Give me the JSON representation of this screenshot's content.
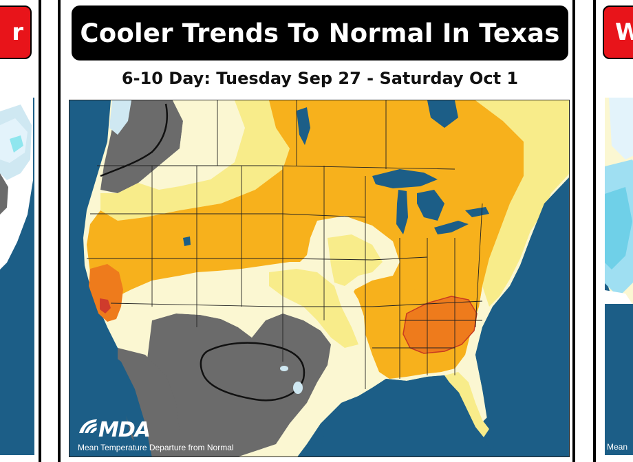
{
  "main": {
    "title": "Cooler Trends To Normal In Texas",
    "subtitle": "6-10 Day: Tuesday Sep 27 - Saturday Oct 1",
    "logo": "MDA",
    "caption": "Mean Temperature Departure from Normal"
  },
  "left_panel": {
    "banner": "r"
  },
  "right_panel": {
    "banner": "W",
    "logo_fragment": "Mean"
  },
  "colors": {
    "ocean": "#1c5e87",
    "lake": "#1c5e87",
    "land_outside": "#8a8a8a",
    "normal": "#fbf7d2",
    "slightly_above": "#f8ec8a",
    "above": "#f7b11c",
    "much_above": "#ee7b1c",
    "way_above": "#cf3b2c",
    "below": "#6b6b6b",
    "cooler_light": "#cfe8f2",
    "cooler_mid": "#9fdff2",
    "banner_red": "#e8141a"
  },
  "icons": [
    "mda-logo-icon"
  ]
}
